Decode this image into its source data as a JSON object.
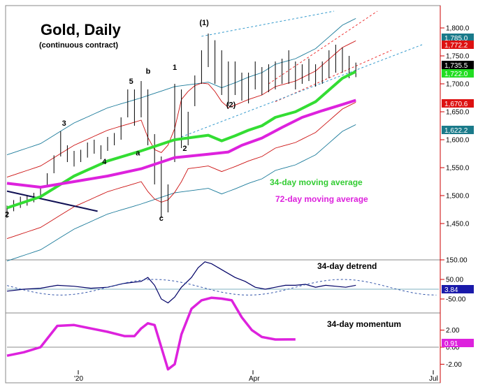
{
  "colors": {
    "frame": "#000000",
    "right_axis": "#cc0000",
    "ma34": "#33dd33",
    "ma72": "#dd22dd",
    "band_outer": "#1a7a9a",
    "band_inner": "#cc1111",
    "projection_blue": "#3399cc",
    "projection_red": "#ee3333",
    "price_bars": "#000000",
    "detrend_line": "#000066",
    "detrend_dashed": "#3355aa",
    "momentum": "#dd22dd",
    "trend_line": "#111155",
    "zero_line": "#5599aa"
  },
  "chart_data": [
    {
      "type": "line",
      "panel": "price",
      "title": "Gold, Daily",
      "subtitle": "(continuous contract)",
      "x_ticks": [
        "'20",
        "Apr",
        "Jul"
      ],
      "ylim": [
        1420,
        1830
      ],
      "y_ticks": [
        1450,
        1500,
        1550,
        1600,
        1650,
        1700,
        1750,
        1800
      ],
      "y_tick_labels": [
        "1,450.0",
        "1,500.0",
        "1,550.0",
        "1,600.0",
        "1,650.0",
        "1,700.0",
        "1,750.0",
        "1,800.0"
      ],
      "grid": false,
      "series": [
        {
          "name": "34-day moving average",
          "x": [
            0,
            10,
            20,
            30,
            40,
            50,
            60,
            64,
            68,
            72,
            76,
            80,
            86,
            92,
            100,
            104
          ],
          "values": [
            1478,
            1498,
            1535,
            1562,
            1580,
            1600,
            1608,
            1598,
            1607,
            1617,
            1625,
            1640,
            1650,
            1668,
            1710,
            1722
          ]
        },
        {
          "name": "72-day moving average",
          "x": [
            0,
            10,
            20,
            30,
            40,
            50,
            60,
            66,
            70,
            76,
            82,
            88,
            94,
            100,
            104
          ],
          "values": [
            1522,
            1515,
            1525,
            1535,
            1548,
            1568,
            1574,
            1578,
            1590,
            1603,
            1622,
            1640,
            1652,
            1663,
            1670.6
          ]
        }
      ],
      "price_bars": {
        "x": [
          0,
          2,
          4,
          6,
          8,
          10,
          12,
          14,
          16,
          18,
          20,
          22,
          24,
          26,
          28,
          30,
          32,
          34,
          36,
          38,
          40,
          42,
          44,
          46,
          48,
          50,
          52,
          54,
          56,
          58,
          60,
          62,
          64,
          66,
          68,
          70,
          72,
          74,
          76,
          78,
          80,
          82,
          84,
          86,
          88,
          90,
          92,
          94,
          96,
          98,
          100,
          102,
          104
        ],
        "high": [
          1482,
          1492,
          1498,
          1500,
          1505,
          1515,
          1540,
          1572,
          1615,
          1590,
          1580,
          1582,
          1595,
          1600,
          1590,
          1605,
          1612,
          1640,
          1690,
          1690,
          1705,
          1690,
          1610,
          1570,
          1520,
          1700,
          1690,
          1650,
          1715,
          1760,
          1790,
          1778,
          1760,
          1740,
          1740,
          1720,
          1720,
          1740,
          1730,
          1735,
          1740,
          1745,
          1760,
          1740,
          1735,
          1745,
          1735,
          1740,
          1760,
          1770,
          1765,
          1750,
          1738
        ],
        "low": [
          1460,
          1472,
          1478,
          1482,
          1488,
          1495,
          1515,
          1540,
          1570,
          1560,
          1552,
          1560,
          1568,
          1575,
          1565,
          1580,
          1590,
          1600,
          1640,
          1625,
          1640,
          1590,
          1520,
          1460,
          1470,
          1560,
          1585,
          1590,
          1660,
          1700,
          1730,
          1700,
          1680,
          1660,
          1680,
          1670,
          1665,
          1690,
          1680,
          1685,
          1690,
          1700,
          1700,
          1690,
          1700,
          1705,
          1695,
          1700,
          1710,
          1720,
          1720,
          1710,
          1712
        ]
      },
      "wave_labels": [
        {
          "text": "2",
          "x": 0,
          "y": 1462
        },
        {
          "text": "3",
          "x": 17,
          "y": 1625
        },
        {
          "text": "4",
          "x": 29,
          "y": 1556
        },
        {
          "text": "5",
          "x": 37,
          "y": 1700
        },
        {
          "text": "a",
          "x": 39,
          "y": 1572
        },
        {
          "text": "b",
          "x": 42,
          "y": 1718
        },
        {
          "text": "c",
          "x": 46,
          "y": 1455
        },
        {
          "text": "1",
          "x": 50,
          "y": 1725
        },
        {
          "text": "2",
          "x": 53,
          "y": 1580
        },
        {
          "text": "(1)",
          "x": 58,
          "y": 1805
        },
        {
          "text": "(2)",
          "x": 66,
          "y": 1658
        }
      ],
      "annotations": [
        "34-day moving average",
        "72-day moving average"
      ],
      "value_tags": [
        {
          "text": "1,785.0",
          "value": 1785,
          "bg": "#1a7a8a",
          "fg": "#ffffff"
        },
        {
          "text": "1,772.2",
          "value": 1772.2,
          "bg": "#dd1111",
          "fg": "#ffffff"
        },
        {
          "text": "1,735.5",
          "value": 1735.5,
          "bg": "#000000",
          "fg": "#ffffff"
        },
        {
          "text": "1,722.0",
          "value": 1722,
          "bg": "#22dd22",
          "fg": "#ffffff"
        },
        {
          "text": "1,670.6",
          "value": 1670.6,
          "bg": "#dd1111",
          "fg": "#ffffff"
        },
        {
          "text": "1,622.2",
          "value": 1622.2,
          "bg": "#1a7a8a",
          "fg": "#ffffff"
        }
      ]
    },
    {
      "type": "line",
      "panel": "detrend",
      "title": "34-day detrend",
      "ylim": [
        -110,
        180
      ],
      "y_ticks": [
        150,
        50,
        -50
      ],
      "y_tick_labels": [
        "150.00",
        "50.00",
        "-50.00"
      ],
      "series": [
        {
          "name": "",
          "x": [
            0,
            5,
            10,
            15,
            20,
            25,
            30,
            35,
            40,
            42,
            44,
            46,
            48,
            50,
            52,
            55,
            57,
            59,
            61,
            63,
            65,
            68,
            71,
            74,
            77,
            80,
            83,
            86,
            89,
            92,
            95,
            98,
            101,
            104
          ],
          "values": [
            -10,
            0,
            5,
            20,
            15,
            5,
            10,
            30,
            40,
            60,
            20,
            -50,
            -70,
            -40,
            10,
            60,
            110,
            140,
            130,
            110,
            90,
            60,
            40,
            10,
            0,
            10,
            20,
            20,
            25,
            10,
            20,
            15,
            10,
            20
          ]
        }
      ],
      "value_tags": [
        {
          "text": "3.84",
          "value": 3.84,
          "bg": "#1a1aaa",
          "fg": "#ffffff"
        }
      ]
    },
    {
      "type": "line",
      "panel": "momentum",
      "title": "34-day momentum",
      "ylim": [
        -3.0,
        6.5
      ],
      "y_ticks": [
        2.0,
        0.0,
        -2.0
      ],
      "y_tick_labels": [
        "2.00",
        "0.00",
        "-2.00"
      ],
      "series": [
        {
          "name": "",
          "x": [
            0,
            5,
            10,
            15,
            20,
            25,
            30,
            35,
            38,
            40,
            42,
            44,
            46,
            48,
            50,
            52,
            55,
            58,
            61,
            64,
            67,
            70,
            73,
            76,
            80,
            84,
            86
          ],
          "values": [
            -1.0,
            -0.6,
            0.0,
            2.5,
            2.6,
            2.2,
            1.8,
            1.3,
            1.3,
            2.2,
            2.8,
            2.6,
            0.0,
            -2.6,
            -2.0,
            1.5,
            4.5,
            5.5,
            5.8,
            5.7,
            5.5,
            3.5,
            2.0,
            1.2,
            0.9,
            0.91,
            0.91
          ]
        }
      ],
      "value_tags": [
        {
          "text": "0.91",
          "value": 0.91,
          "bg": "#dd22dd",
          "fg": "#ffffff"
        }
      ]
    }
  ]
}
